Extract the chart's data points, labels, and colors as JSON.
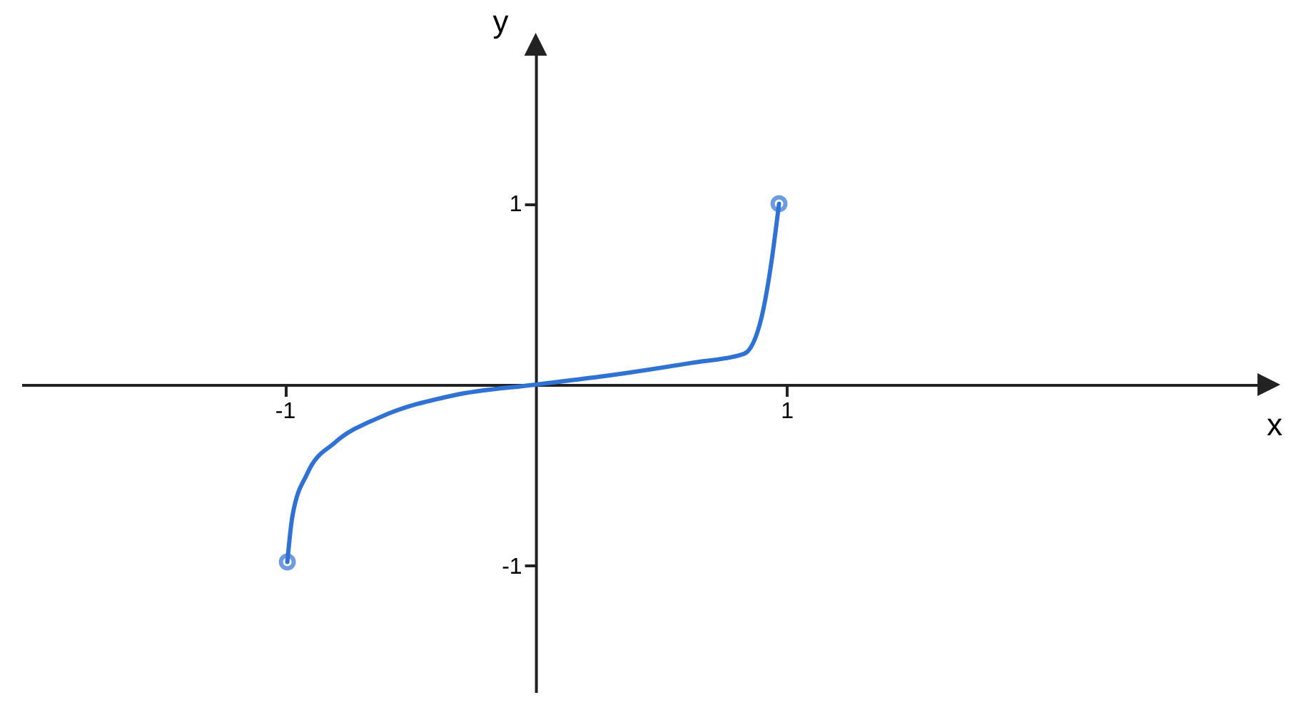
{
  "chart_data": {
    "type": "line",
    "xlabel": "x",
    "ylabel": "y",
    "xlim": [
      -2.05,
      2.9
    ],
    "ylim": [
      -1.7,
      1.85
    ],
    "xticks": [
      -1,
      1
    ],
    "yticks": [
      -1,
      1
    ],
    "grid": false,
    "series": [
      {
        "color": "#2f72d4",
        "x": [
          -0.99,
          -0.97,
          -0.91,
          -0.8,
          -0.62,
          -0.33,
          0,
          0.29,
          0.62,
          0.83,
          0.9,
          0.94,
          0.97
        ],
        "values": [
          -0.98,
          -0.73,
          -0.49,
          -0.32,
          -0.18,
          -0.06,
          0,
          0.05,
          0.12,
          0.17,
          0.37,
          0.68,
          1
        ]
      },
      {
        "type": "scatter",
        "marker": "circle",
        "color": "#2f72d4",
        "x": [
          -0.99,
          0.97
        ],
        "values": [
          -0.98,
          1
        ]
      }
    ]
  }
}
